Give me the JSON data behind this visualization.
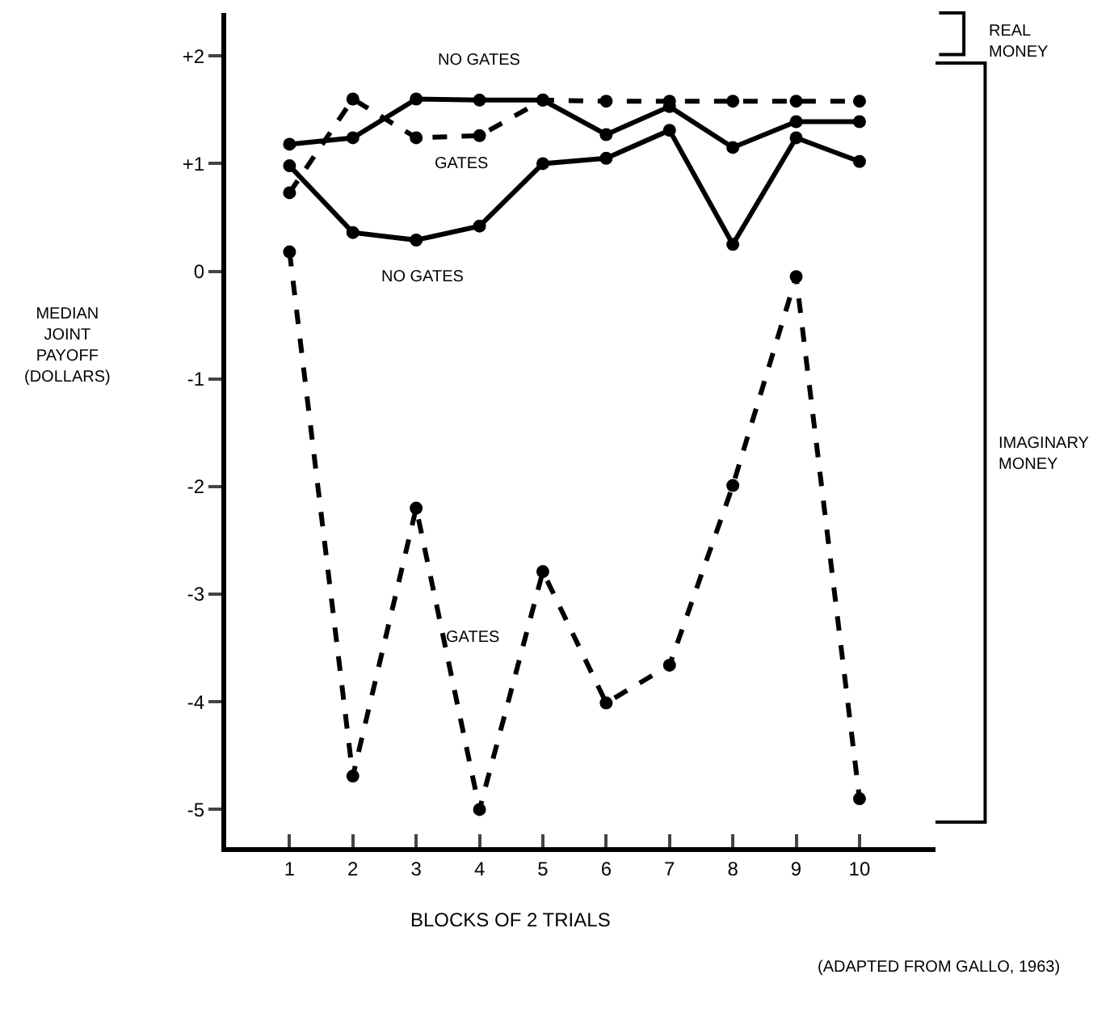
{
  "chart_data": {
    "type": "line",
    "xlabel": "BLOCKS OF 2 TRIALS",
    "ylabel": "MEDIAN\nJOINT\nPAYOFF\n(DOLLARS)",
    "x": [
      1,
      2,
      3,
      4,
      5,
      6,
      7,
      8,
      9,
      10
    ],
    "series": [
      {
        "color": "#000000",
        "line_style": "solid",
        "values": [
          1.18,
          1.24,
          1.6,
          1.59,
          1.59,
          1.27,
          1.53,
          1.15,
          1.39,
          1.39
        ]
      },
      {
        "color": "#000000",
        "line_style": "dashed",
        "values": [
          0.73,
          1.6,
          1.24,
          1.26,
          1.59,
          1.58,
          1.58,
          1.58,
          1.58,
          1.58
        ]
      },
      {
        "color": "#000000",
        "line_style": "solid",
        "values": [
          0.98,
          0.36,
          0.29,
          0.42,
          1.0,
          1.05,
          1.31,
          0.25,
          1.24,
          1.02
        ]
      },
      {
        "color": "#000000",
        "line_style": "dashed",
        "values": [
          0.18,
          -4.69,
          -2.2,
          -5.0,
          -2.79,
          -4.01,
          -3.66,
          -1.99,
          -0.05,
          -4.9
        ]
      }
    ],
    "xlim": [
      0,
      11.2
    ],
    "ylim": [
      -5.35,
      2.4
    ],
    "xticks": [
      1,
      2,
      3,
      4,
      5,
      6,
      7,
      8,
      9,
      10
    ],
    "yticks": [
      {
        "value": 2,
        "label": "+2"
      },
      {
        "value": 1,
        "label": "+1"
      },
      0,
      -1,
      -2,
      -3,
      -4,
      -5
    ],
    "marker": "circle",
    "annotations": [
      "NO GATES",
      "GATES",
      "NO GATES",
      "GATES",
      "REAL\nMONEY",
      "IMAGINARY\nMONEY",
      "(ADAPTED FROM GALLO, 1963)"
    ]
  }
}
